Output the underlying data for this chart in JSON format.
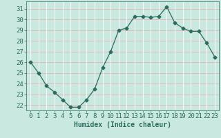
{
  "x": [
    0,
    1,
    2,
    3,
    4,
    5,
    6,
    7,
    8,
    9,
    10,
    11,
    12,
    13,
    14,
    15,
    16,
    17,
    18,
    19,
    20,
    21,
    22,
    23
  ],
  "y": [
    26,
    25,
    23.8,
    23.2,
    22.5,
    21.8,
    21.8,
    22.5,
    23.5,
    25.5,
    27.0,
    29.0,
    29.2,
    30.3,
    30.3,
    30.2,
    30.3,
    31.2,
    29.7,
    29.2,
    28.9,
    28.9,
    27.8,
    26.5
  ],
  "title": "",
  "xlabel": "Humidex (Indice chaleur)",
  "ylabel": "",
  "ylim": [
    21.5,
    31.7
  ],
  "xlim": [
    -0.5,
    23.5
  ],
  "yticks": [
    22,
    23,
    24,
    25,
    26,
    27,
    28,
    29,
    30,
    31
  ],
  "xticks": [
    0,
    1,
    2,
    3,
    4,
    5,
    6,
    7,
    8,
    9,
    10,
    11,
    12,
    13,
    14,
    15,
    16,
    17,
    18,
    19,
    20,
    21,
    22,
    23
  ],
  "line_color": "#2e6b5e",
  "marker": "D",
  "bg_color": "#c8e8e0",
  "grid_color_h": "#e8b0b0",
  "grid_color_v": "#ffffff",
  "tick_color": "#2e6b5e",
  "xlabel_fontsize": 7,
  "tick_fontsize": 6.5
}
